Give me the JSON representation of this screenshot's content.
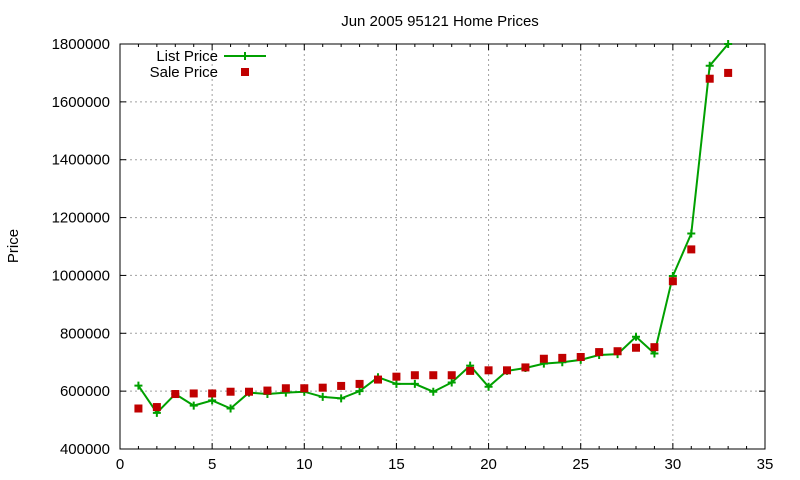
{
  "chart_data": {
    "type": "line",
    "title": "Jun 2005 95121 Home Prices",
    "xlabel": "",
    "ylabel": "Price",
    "xlim": [
      0,
      35
    ],
    "ylim": [
      400000,
      1800000
    ],
    "x_ticks": [
      "0",
      "5",
      "10",
      "15",
      "20",
      "25",
      "30",
      "35"
    ],
    "y_ticks": [
      "400000",
      "600000",
      "800000",
      "1000000",
      "1200000",
      "1400000",
      "1600000",
      "1800000"
    ],
    "grid": true,
    "legend_position": "top-left",
    "series": [
      {
        "name": "List Price",
        "style": "line-with-plus-markers",
        "color": "#00a000",
        "x": [
          1,
          2,
          3,
          4,
          5,
          6,
          7,
          8,
          9,
          10,
          11,
          12,
          13,
          14,
          15,
          16,
          17,
          18,
          19,
          20,
          21,
          22,
          23,
          24,
          25,
          26,
          27,
          28,
          29,
          30,
          31,
          32,
          33
        ],
        "values": [
          619000,
          525000,
          590000,
          550000,
          568000,
          540000,
          595000,
          590000,
          595000,
          598000,
          580000,
          575000,
          600000,
          648000,
          625000,
          625000,
          598000,
          630000,
          688000,
          615000,
          670000,
          680000,
          695000,
          700000,
          708000,
          725000,
          728000,
          788000,
          730000,
          998000,
          1145000,
          1725000,
          1800000
        ]
      },
      {
        "name": "Sale Price",
        "style": "square-markers",
        "color": "#c00000",
        "x": [
          1,
          2,
          3,
          4,
          5,
          6,
          7,
          8,
          9,
          10,
          11,
          12,
          13,
          14,
          15,
          16,
          17,
          18,
          19,
          20,
          21,
          22,
          23,
          24,
          25,
          26,
          27,
          28,
          29,
          30,
          31,
          32,
          33
        ],
        "values": [
          540000,
          545000,
          590000,
          592000,
          592000,
          598000,
          598000,
          602000,
          610000,
          610000,
          612000,
          618000,
          625000,
          640000,
          650000,
          655000,
          655000,
          655000,
          670000,
          672000,
          672000,
          682000,
          712000,
          715000,
          718000,
          735000,
          738000,
          750000,
          752000,
          980000,
          1090000,
          1680000,
          1700000
        ]
      }
    ]
  }
}
